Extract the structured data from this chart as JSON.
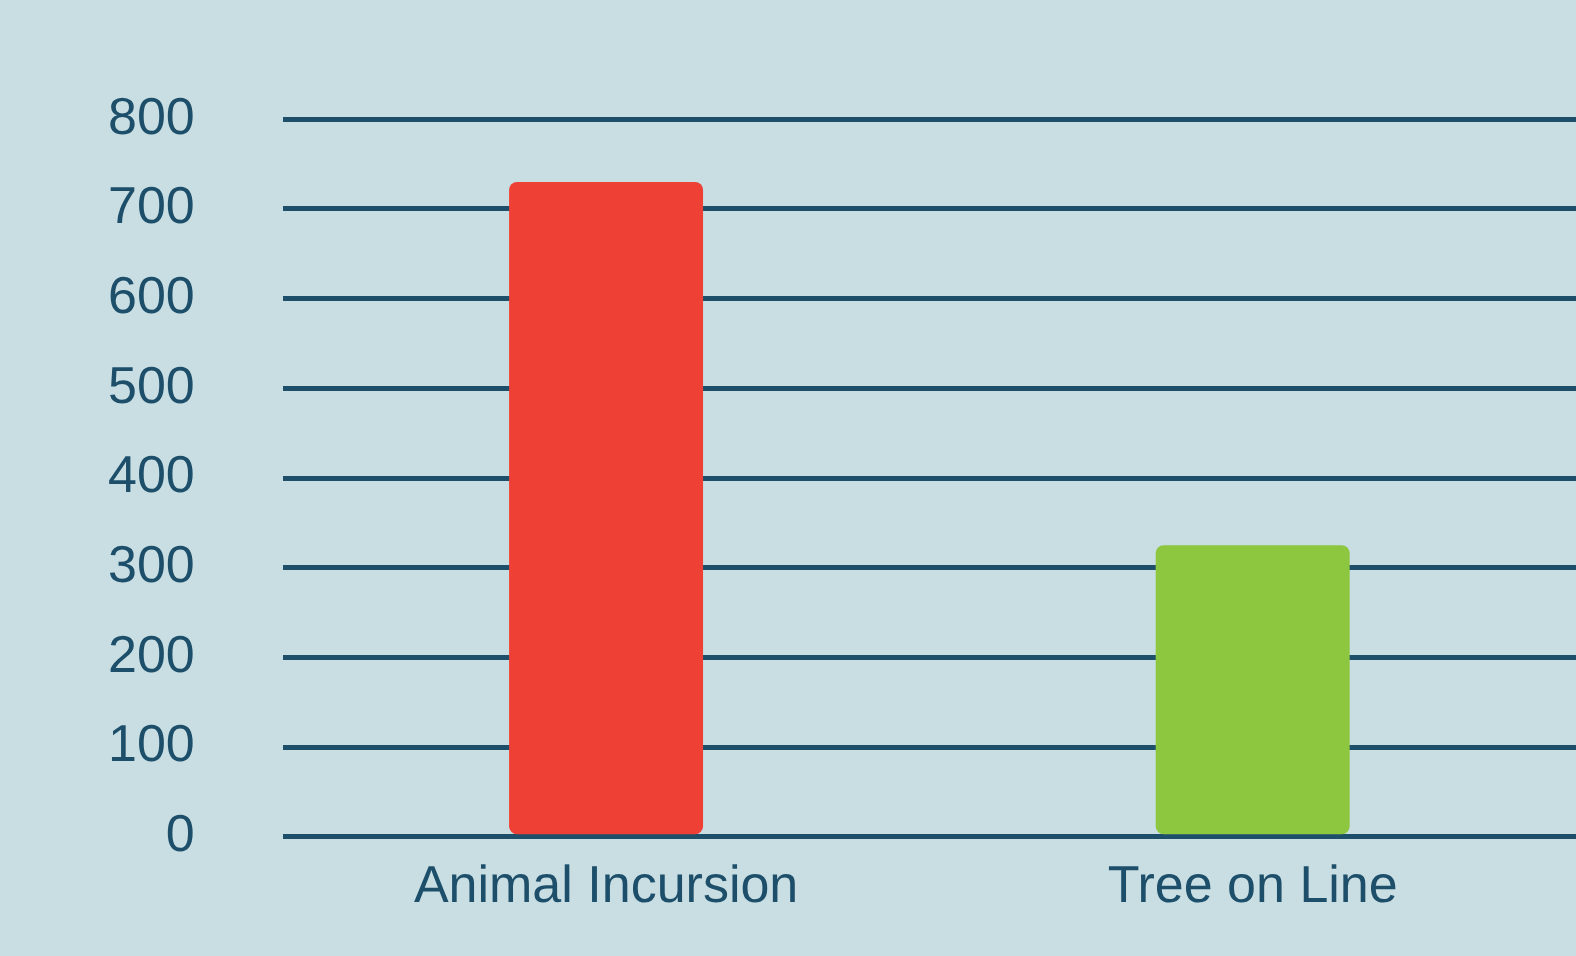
{
  "chart_data": {
    "type": "bar",
    "categories": [
      "Animal Incursion",
      "Tree on Line"
    ],
    "values": [
      730,
      325
    ],
    "colors": [
      "#ef4036",
      "#8dc63f"
    ],
    "ylim": [
      0,
      800
    ],
    "yticks": [
      0,
      100,
      200,
      300,
      400,
      500,
      600,
      700,
      800
    ],
    "grid": "y",
    "legend": false
  }
}
